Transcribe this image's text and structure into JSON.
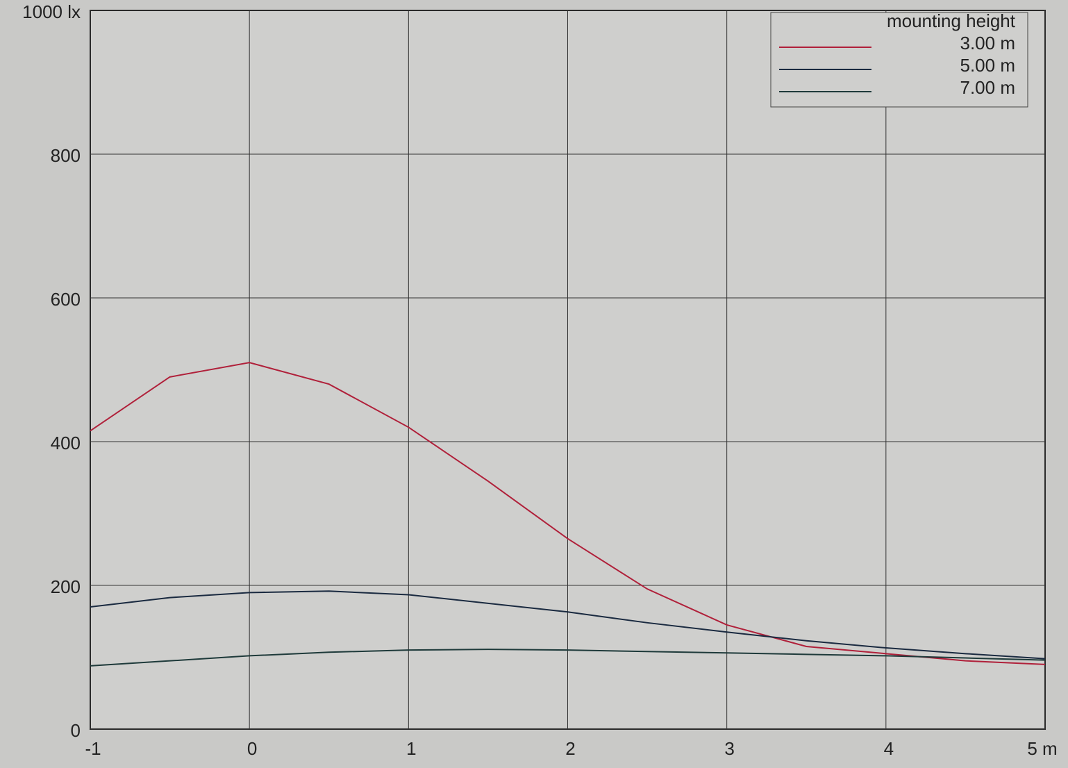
{
  "chart_data": {
    "type": "line",
    "x": [
      -1,
      -0.5,
      0,
      0.5,
      1,
      1.5,
      2,
      2.5,
      3,
      3.5,
      4,
      4.5,
      5
    ],
    "series": [
      {
        "name": "3.00 m",
        "color": "#b0203a",
        "values": [
          415,
          490,
          510,
          480,
          420,
          345,
          265,
          195,
          145,
          115,
          105,
          95,
          90
        ]
      },
      {
        "name": "5.00 m",
        "color": "#1a2a40",
        "values": [
          170,
          183,
          190,
          192,
          187,
          175,
          163,
          148,
          135,
          123,
          113,
          105,
          98
        ]
      },
      {
        "name": "7.00 m",
        "color": "#1e3a3a",
        "values": [
          88,
          95,
          102,
          107,
          110,
          111,
          110,
          108,
          106,
          104,
          102,
          99,
          96
        ]
      }
    ],
    "legend_title": "mounting height",
    "legend_position": "upper right",
    "xlim": [
      -1,
      5
    ],
    "xticks": [
      -1,
      0,
      1,
      2,
      3,
      4,
      {
        "value": 5,
        "label": "5 m"
      }
    ],
    "ylim": [
      0,
      1000
    ],
    "yticks": [
      0,
      200,
      400,
      600,
      800,
      {
        "value": 1000,
        "label": "1000 lx"
      }
    ],
    "grid": true
  }
}
